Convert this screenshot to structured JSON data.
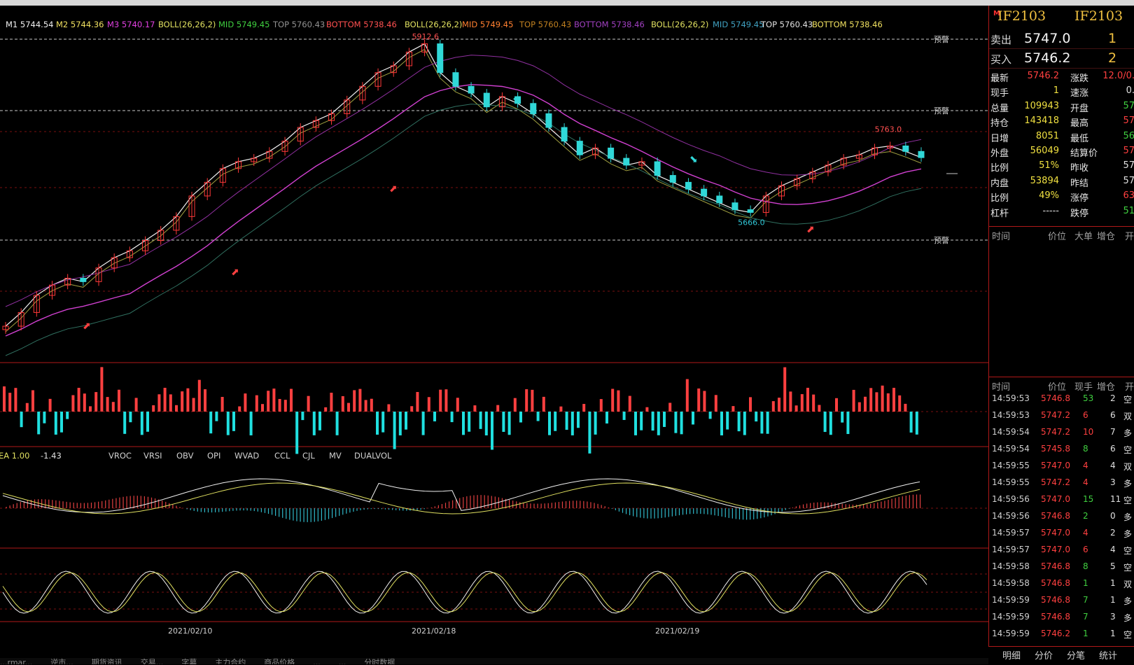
{
  "chart_data": {
    "type": "candlestick",
    "symbol": "IF2103",
    "price_labels": {
      "high": "5912.6",
      "low": "5666.0",
      "recent_high": "5763.0"
    },
    "alert_label": "预警",
    "x_dates": [
      "2021/02/10",
      "2021/02/18",
      "2021/02/19"
    ],
    "approx_close": [
      5500,
      5520,
      5545,
      5560,
      5570,
      5565,
      5585,
      5600,
      5610,
      5625,
      5640,
      5660,
      5690,
      5710,
      5730,
      5740,
      5745,
      5755,
      5770,
      5790,
      5800,
      5810,
      5830,
      5850,
      5870,
      5880,
      5900,
      5912,
      5870,
      5850,
      5840,
      5820,
      5835,
      5825,
      5810,
      5790,
      5770,
      5750,
      5760,
      5745,
      5735,
      5740,
      5720,
      5710,
      5700,
      5690,
      5680,
      5670,
      5666,
      5690,
      5705,
      5715,
      5725,
      5735,
      5745,
      5750,
      5760,
      5763,
      5755,
      5746
    ]
  },
  "indicators": {
    "ma": [
      {
        "text": "M1 5744.54",
        "color": "#f0f0f0"
      },
      {
        "text": "M2 5744.36",
        "color": "#f0e060"
      },
      {
        "text": "M3 5740.17",
        "color": "#e040e0"
      }
    ],
    "boll": [
      {
        "text": "BOLL(26,26,2)",
        "color": "#e0e060"
      },
      {
        "text": "MID 5749.45",
        "color": "#40d040"
      },
      {
        "text": "TOP 5760.43",
        "color": "#909090"
      },
      {
        "text": "BOTTOM 5738.46",
        "color": "#ff5050"
      },
      {
        "text": "BOLL(26,26,2)",
        "color": "#e0e060"
      },
      {
        "text": "MID 5749.45",
        "color": "#ff8030"
      },
      {
        "text": "TOP 5760.43",
        "color": "#c08020"
      },
      {
        "text": "BOTTOM 5738.46",
        "color": "#a040c0"
      },
      {
        "text": "BOLL(26,26,2)",
        "color": "#e0e060"
      },
      {
        "text": "MID 5749.45",
        "color": "#40a0c0"
      },
      {
        "text": "TOP 5760.43",
        "color": "#e0e0e0"
      },
      {
        "text": "BOTTOM 5738.46",
        "color": "#f0e060"
      }
    ],
    "macd_label": "EA 1.00",
    "macd_value": "-1.43",
    "tabs": [
      "VROC",
      "VRSI",
      "OBV",
      "OPI",
      "WVAD",
      "CCL",
      "CJL",
      "MV",
      "DUALVOL"
    ]
  },
  "panel": {
    "symbol": "IF2103",
    "symbol2": "IF2103",
    "marker": "M",
    "sell_label": "卖出",
    "sell_price": "5747.0",
    "sell_qty": "1",
    "buy_label": "买入",
    "buy_price": "5746.2",
    "buy_qty": "2",
    "quotes": [
      {
        "l1": "最新",
        "v1": "5746.2",
        "c1": "#ff4040",
        "l2": "涨跌",
        "v2": "12.0/0.",
        "c2": "#ff4040"
      },
      {
        "l1": "现手",
        "v1": "1",
        "c1": "#f0e040",
        "l2": "速涨",
        "v2": "0.",
        "c2": "#e0e0e0"
      },
      {
        "l1": "总量",
        "v1": "109943",
        "c1": "#f0e040",
        "l2": "开盘",
        "v2": "57",
        "c2": "#40d040"
      },
      {
        "l1": "持仓",
        "v1": "143418",
        "c1": "#f0e040",
        "l2": "最高",
        "v2": "57",
        "c2": "#ff4040"
      },
      {
        "l1": "日增",
        "v1": "8051",
        "c1": "#f0e040",
        "l2": "最低",
        "v2": "56",
        "c2": "#40d040"
      },
      {
        "l1": "外盘",
        "v1": "56049",
        "c1": "#f0e040",
        "l2": "结算价",
        "v2": "57",
        "c2": "#ff4040"
      },
      {
        "l1": "比例",
        "v1": "51%",
        "c1": "#f0e040",
        "l2": "昨收",
        "v2": "57",
        "c2": "#e0e0e0"
      },
      {
        "l1": "内盘",
        "v1": "53894",
        "c1": "#f0e040",
        "l2": "昨结",
        "v2": "57",
        "c2": "#e0e0e0"
      },
      {
        "l1": "比例",
        "v1": "49%",
        "c1": "#f0e040",
        "l2": "涨停",
        "v2": "63",
        "c2": "#ff4040"
      },
      {
        "l1": "杠杆",
        "v1": "-----",
        "c1": "#e0e0e0",
        "l2": "跌停",
        "v2": "51",
        "c2": "#40d040"
      }
    ],
    "tradeheader": [
      "时间",
      "价位",
      "大单",
      "增仓",
      "开"
    ],
    "tickheader": [
      "时间",
      "价位",
      "现手",
      "增仓",
      "开"
    ],
    "ticks": [
      {
        "t": "14:59:53",
        "p": "5746.8",
        "q": "53",
        "qc": "#40d040",
        "z": "2",
        "k": "空"
      },
      {
        "t": "14:59:53",
        "p": "5747.2",
        "q": "6",
        "qc": "#ff4040",
        "z": "6",
        "k": "双"
      },
      {
        "t": "14:59:54",
        "p": "5747.2",
        "q": "10",
        "qc": "#ff4040",
        "z": "7",
        "k": "多"
      },
      {
        "t": "14:59:54",
        "p": "5745.8",
        "q": "8",
        "qc": "#40d040",
        "z": "6",
        "k": "空"
      },
      {
        "t": "14:59:55",
        "p": "5747.0",
        "q": "4",
        "qc": "#ff4040",
        "z": "4",
        "k": "双"
      },
      {
        "t": "14:59:55",
        "p": "5747.2",
        "q": "4",
        "qc": "#ff4040",
        "z": "3",
        "k": "多"
      },
      {
        "t": "14:59:56",
        "p": "5747.0",
        "q": "15",
        "qc": "#40d040",
        "z": "11",
        "k": "空"
      },
      {
        "t": "14:59:56",
        "p": "5746.8",
        "q": "2",
        "qc": "#40d040",
        "z": "0",
        "k": "多"
      },
      {
        "t": "14:59:57",
        "p": "5747.0",
        "q": "4",
        "qc": "#ff4040",
        "z": "2",
        "k": "多"
      },
      {
        "t": "14:59:57",
        "p": "5747.0",
        "q": "6",
        "qc": "#ff4040",
        "z": "4",
        "k": "空"
      },
      {
        "t": "14:59:58",
        "p": "5746.8",
        "q": "8",
        "qc": "#40d040",
        "z": "5",
        "k": "空"
      },
      {
        "t": "14:59:58",
        "p": "5746.8",
        "q": "1",
        "qc": "#40d040",
        "z": "1",
        "k": "双"
      },
      {
        "t": "14:59:59",
        "p": "5746.8",
        "q": "7",
        "qc": "#40d040",
        "z": "1",
        "k": "多"
      },
      {
        "t": "14:59:59",
        "p": "5746.8",
        "q": "7",
        "qc": "#40d040",
        "z": "3",
        "k": "多"
      },
      {
        "t": "14:59:59",
        "p": "5746.2",
        "q": "1",
        "qc": "#40d040",
        "z": "1",
        "k": "空"
      }
    ],
    "tabs": [
      "明细",
      "分价",
      "分笔",
      "统计"
    ]
  },
  "taskbar": [
    "...rmar...",
    "逆市...",
    "期货资讯",
    "交易...",
    "字幕",
    "主力合约",
    "商品价格",
    "...",
    "...",
    "分时数据"
  ]
}
